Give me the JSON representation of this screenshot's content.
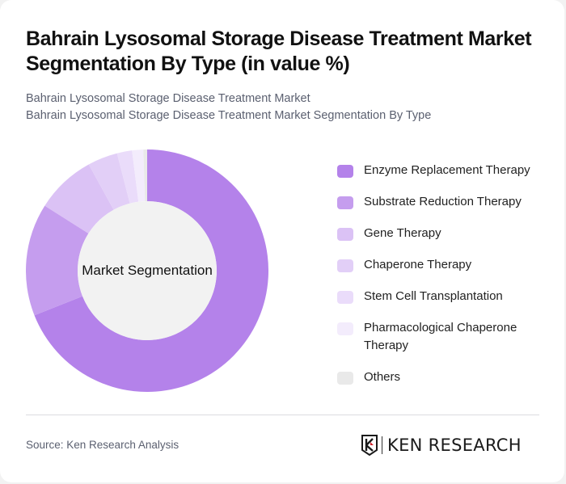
{
  "header": {
    "title": "Bahrain Lysosomal Storage Disease Treatment Market Segmentation By Type (in value %)",
    "subtitle_line1": "Bahrain Lysosomal Storage Disease Treatment Market",
    "subtitle_line2": "Bahrain Lysosomal Storage Disease Treatment Market Segmentation By Type"
  },
  "donut": {
    "center_label": "Market Segmentation"
  },
  "legend": [
    {
      "label": "Enzyme Replacement Therapy",
      "color": "#b482ea"
    },
    {
      "label": "Substrate Reduction Therapy",
      "color": "#c59dee"
    },
    {
      "label": "Gene Therapy",
      "color": "#dbc2f5"
    },
    {
      "label": "Chaperone Therapy",
      "color": "#e2cff7"
    },
    {
      "label": "Stem Cell Transplantation",
      "color": "#eadcfa"
    },
    {
      "label": "Pharmacological Chaperone Therapy",
      "color": "#f3ecfc"
    },
    {
      "label": "Others",
      "color": "#e9e9e9"
    }
  ],
  "footer": {
    "source": "Source: Ken Research Analysis",
    "logo_text": "KEN RESEARCH"
  },
  "chart_data": {
    "type": "pie",
    "subtype": "donut",
    "title": "Bahrain Lysosomal Storage Disease Treatment Market Segmentation By Type (in value %)",
    "center_label": "Market Segmentation",
    "categories": [
      "Enzyme Replacement Therapy",
      "Substrate Reduction Therapy",
      "Gene Therapy",
      "Chaperone Therapy",
      "Stem Cell Transplantation",
      "Pharmacological Chaperone Therapy",
      "Others"
    ],
    "values": [
      69,
      15,
      8,
      4,
      2,
      1.5,
      0.5
    ],
    "colors": [
      "#b482ea",
      "#c59dee",
      "#dbc2f5",
      "#e2cff7",
      "#eadcfa",
      "#f3ecfc",
      "#e9e9e9"
    ],
    "unit": "%",
    "legend_position": "right",
    "start_angle_deg": 0,
    "direction": "clockwise"
  }
}
